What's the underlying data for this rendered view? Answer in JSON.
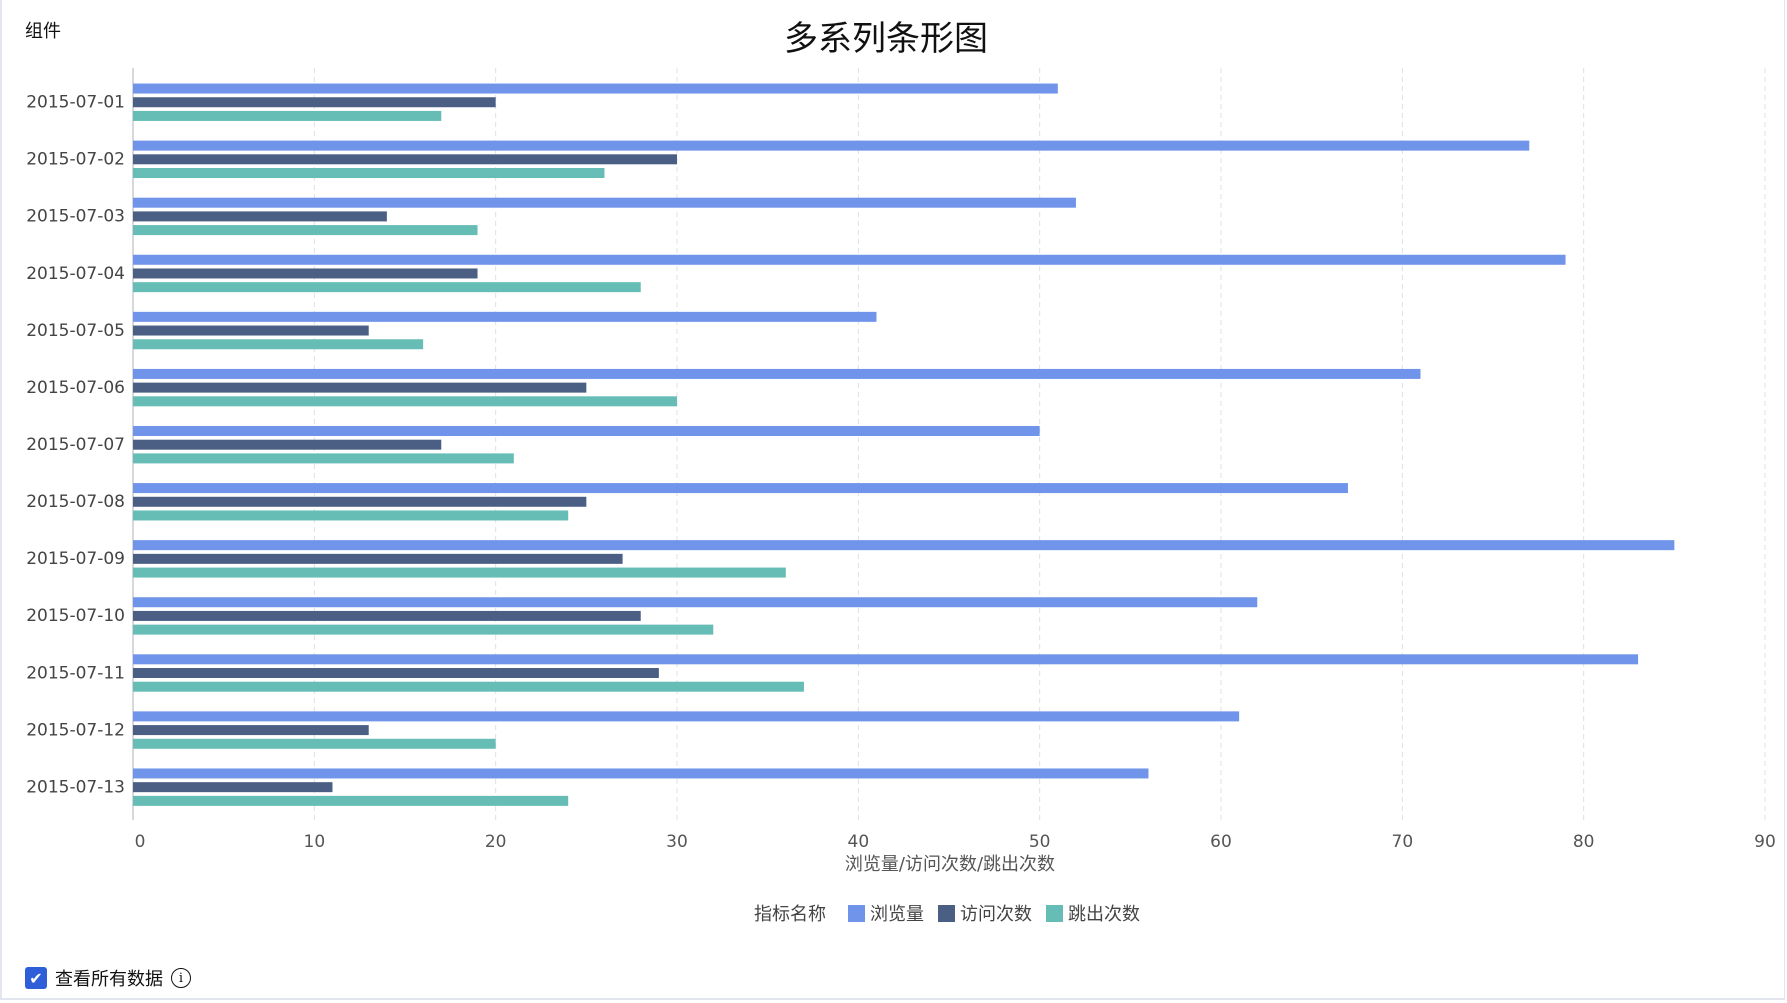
{
  "component_label": "组件",
  "view_all": {
    "label": "查看所有数据",
    "checked": true,
    "info_icon": "info-icon"
  },
  "chart_data": {
    "type": "bar",
    "orientation": "horizontal",
    "title": "多系列条形图",
    "xlabel": "浏览量/访问次数/跳出次数",
    "ylabel": "",
    "xlim": [
      0,
      90
    ],
    "xticks": [
      0,
      10,
      20,
      30,
      40,
      50,
      60,
      70,
      80,
      90
    ],
    "grid": "vertical dashed",
    "legend_title": "指标名称",
    "legend_placement": "bottom",
    "categories": [
      "2015-07-01",
      "2015-07-02",
      "2015-07-03",
      "2015-07-04",
      "2015-07-05",
      "2015-07-06",
      "2015-07-07",
      "2015-07-08",
      "2015-07-09",
      "2015-07-10",
      "2015-07-11",
      "2015-07-12",
      "2015-07-13"
    ],
    "series": [
      {
        "name": "浏览量",
        "color": "#7094ea",
        "values": [
          51,
          77,
          52,
          79,
          41,
          71,
          50,
          67,
          85,
          62,
          83,
          61,
          56
        ]
      },
      {
        "name": "访问次数",
        "color": "#4b5f85",
        "values": [
          20,
          30,
          14,
          19,
          13,
          25,
          17,
          25,
          27,
          28,
          29,
          13,
          11
        ]
      },
      {
        "name": "跳出次数",
        "color": "#65bdb5",
        "values": [
          17,
          26,
          19,
          28,
          16,
          30,
          21,
          24,
          36,
          32,
          37,
          20,
          24
        ]
      }
    ]
  }
}
